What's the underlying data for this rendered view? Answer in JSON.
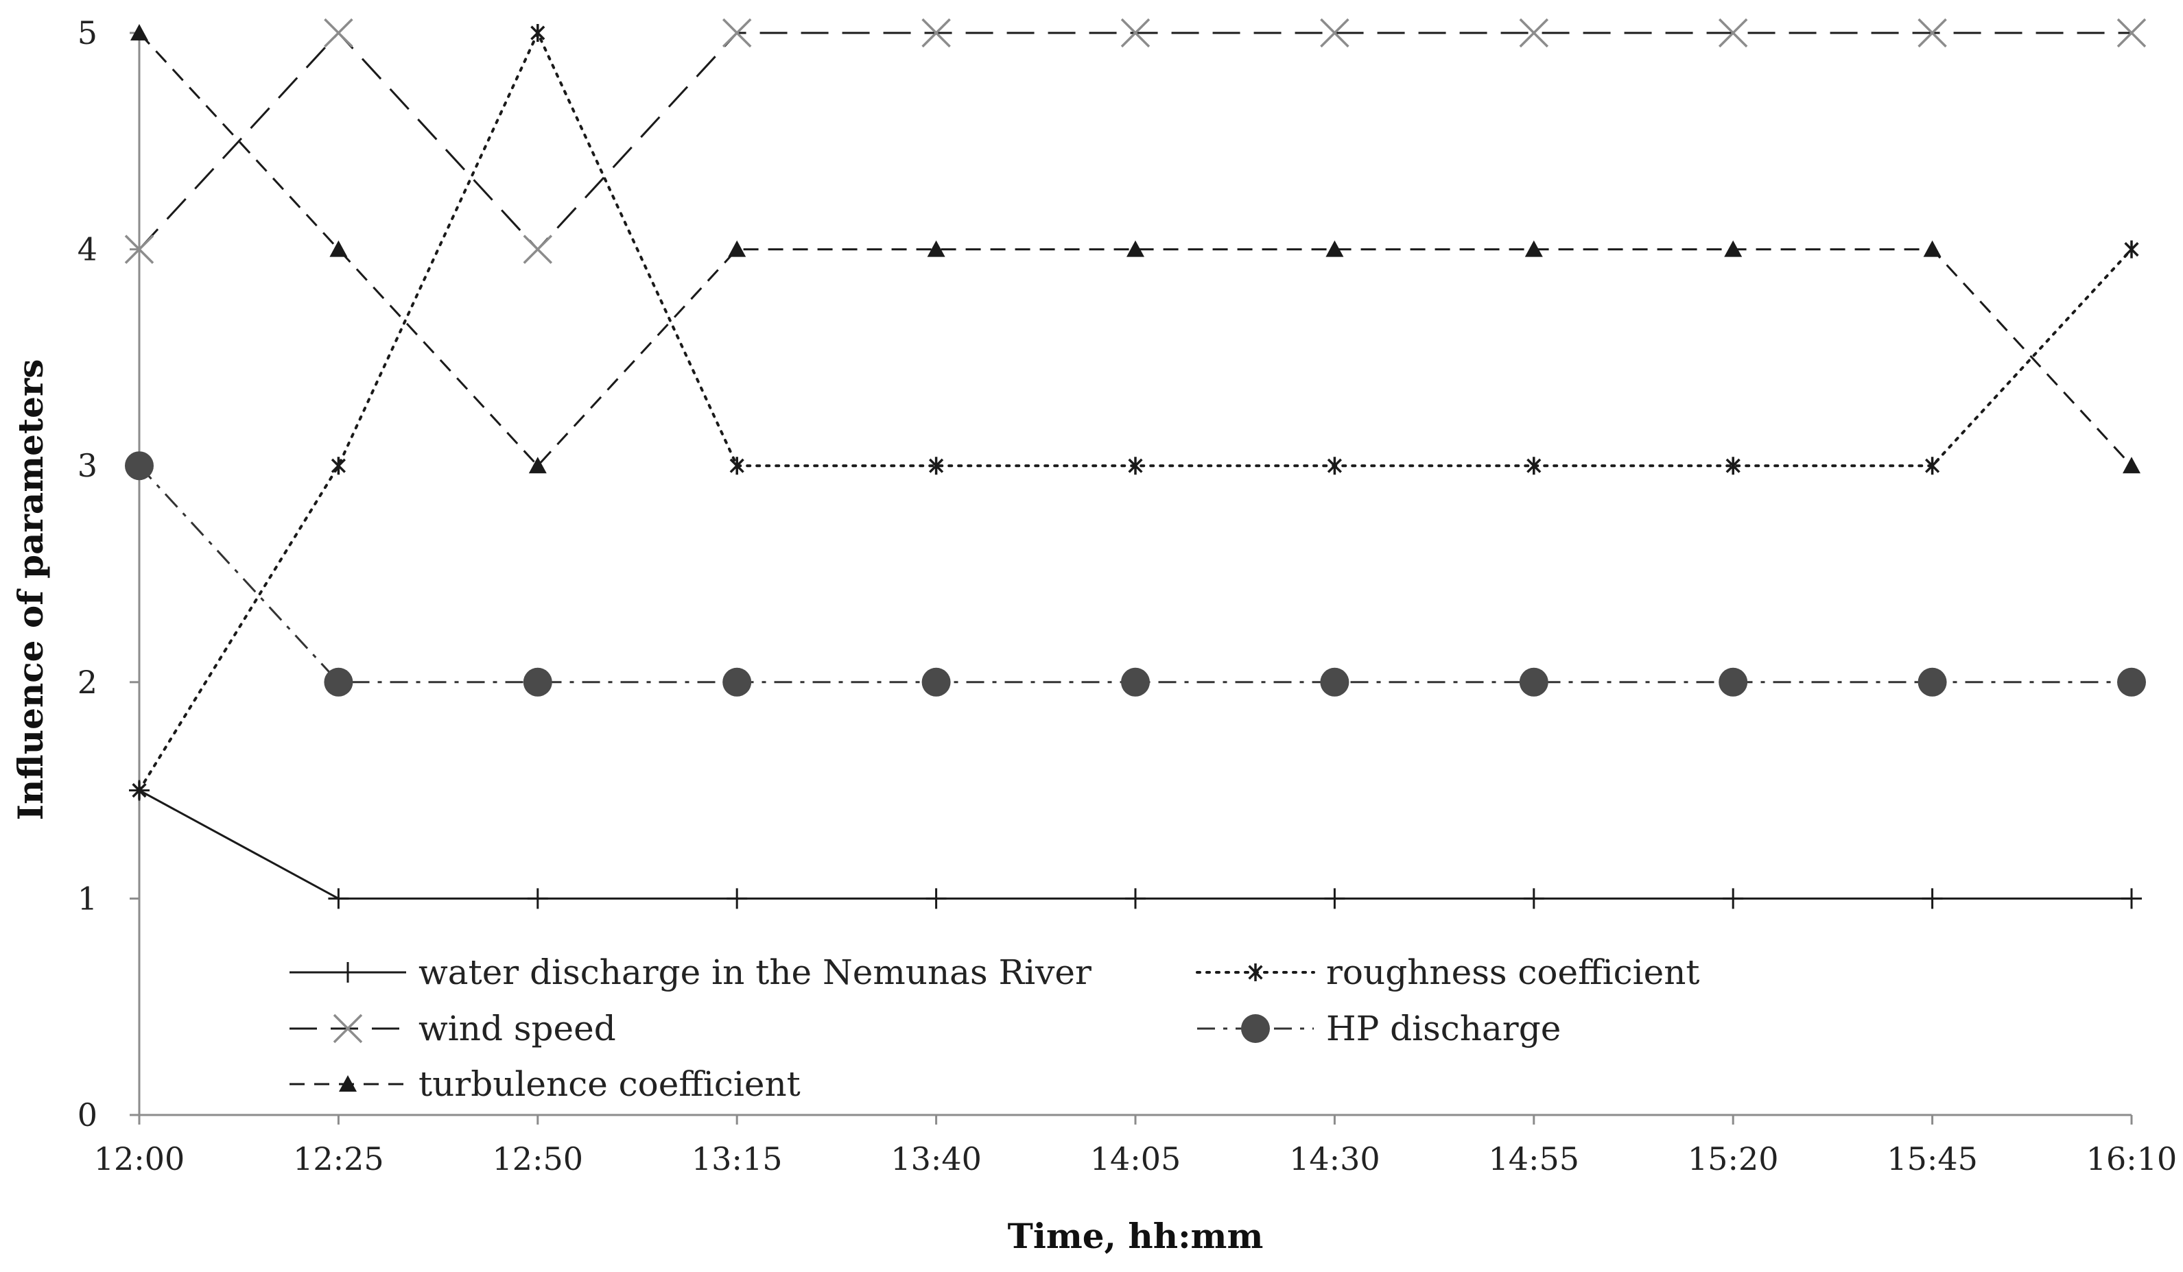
{
  "chart_data": {
    "type": "line",
    "title": "",
    "xlabel": "Time, hh:mm",
    "ylabel": "Influence of parameters",
    "categories": [
      "12:00",
      "12:25",
      "12:50",
      "13:15",
      "13:40",
      "14:05",
      "14:30",
      "14:55",
      "15:20",
      "15:45",
      "16:10"
    ],
    "ylim": [
      0,
      5
    ],
    "yticks": [
      "0",
      "1",
      "2",
      "3",
      "4",
      "5"
    ],
    "grid": false,
    "legend_position": "bottom-inside",
    "series": [
      {
        "name": "water discharge in the Nemunas River",
        "values": [
          1.5,
          1,
          1,
          1,
          1,
          1,
          1,
          1,
          1,
          1,
          1
        ],
        "line_style": "solid",
        "marker": "plus",
        "color": "#1a1a1a"
      },
      {
        "name": "roughness coefficient",
        "values": [
          1.5,
          3,
          5,
          3,
          3,
          3,
          3,
          3,
          3,
          3,
          4
        ],
        "line_style": "dotted",
        "marker": "asterisk",
        "color": "#1a1a1a"
      },
      {
        "name": "wind speed",
        "values": [
          4,
          5,
          4,
          5,
          5,
          5,
          5,
          5,
          5,
          5,
          5
        ],
        "line_style": "long-dash",
        "marker": "x",
        "color": "#1a1a1a",
        "marker_color": "#8c8c8c"
      },
      {
        "name": "HP discharge",
        "values": [
          3,
          2,
          2,
          2,
          2,
          2,
          2,
          2,
          2,
          2,
          2
        ],
        "line_style": "dash-dot",
        "marker": "circle",
        "color": "#333333",
        "marker_color": "#4a4a4a"
      },
      {
        "name": "turbulence coefficient",
        "values": [
          5,
          4,
          3,
          4,
          4,
          4,
          4,
          4,
          4,
          4,
          3
        ],
        "line_style": "dashed",
        "marker": "triangle",
        "color": "#1a1a1a"
      }
    ]
  }
}
